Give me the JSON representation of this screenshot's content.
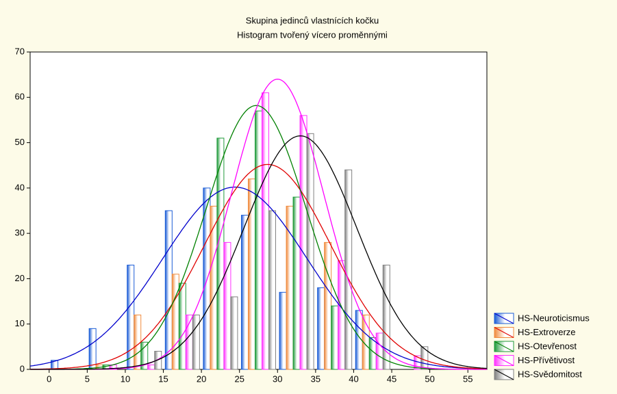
{
  "chart_data": {
    "type": "histogram",
    "title": "Skupina jedinců vlastnících kočku",
    "subtitle": "Histogram tvořený vícero proměnnými",
    "bins": [
      0,
      5,
      10,
      15,
      20,
      25,
      30,
      35,
      40,
      45,
      50
    ],
    "xlim": [
      -2.5,
      57.5
    ],
    "xticks": [
      0,
      5,
      10,
      15,
      20,
      25,
      30,
      35,
      40,
      45,
      50,
      55
    ],
    "ylim": [
      0,
      70
    ],
    "yticks": [
      0,
      10,
      20,
      30,
      40,
      50,
      60,
      70
    ],
    "legend": "lower right",
    "series": [
      {
        "name": "HS-Neuroticismus",
        "color": "#1a5cd6",
        "curve_color": "#0000cc",
        "values": [
          2,
          9,
          23,
          35,
          40,
          34,
          17,
          18,
          13,
          0
        ],
        "fit": {
          "mean": 24.4,
          "sd": 9.5,
          "peak": 40.2
        }
      },
      {
        "name": "HS-Extroverze",
        "color": "#f08a3c",
        "curve_color": "#e00000",
        "values": [
          0,
          1,
          12,
          21,
          36,
          42,
          36,
          28,
          12,
          0
        ],
        "fit": {
          "mean": 28.7,
          "sd": 8.3,
          "peak": 45.2
        }
      },
      {
        "name": "HS-Otevřenost",
        "color": "#1f9a3a",
        "curve_color": "#008000",
        "values": [
          0,
          1,
          6,
          19,
          51,
          57,
          38,
          14,
          7,
          0
        ],
        "fit": {
          "mean": 27.2,
          "sd": 6.6,
          "peak": 58.2
        }
      },
      {
        "name": "HS-Přívětivost",
        "color": "#ff30ff",
        "curve_color": "#ff00ff",
        "values": [
          0,
          1,
          1,
          12,
          28,
          61,
          56,
          24,
          8,
          3
        ],
        "fit": {
          "mean": 30.0,
          "sd": 6.05,
          "peak": 64
        }
      },
      {
        "name": "HS-Svědomitost",
        "color": "#808080",
        "curve_color": "#000000",
        "values": [
          0,
          0,
          4,
          12,
          16,
          35,
          52,
          44,
          23,
          5
        ],
        "fit": {
          "mean": 33.0,
          "sd": 7.4,
          "peak": 51.5
        }
      }
    ]
  }
}
